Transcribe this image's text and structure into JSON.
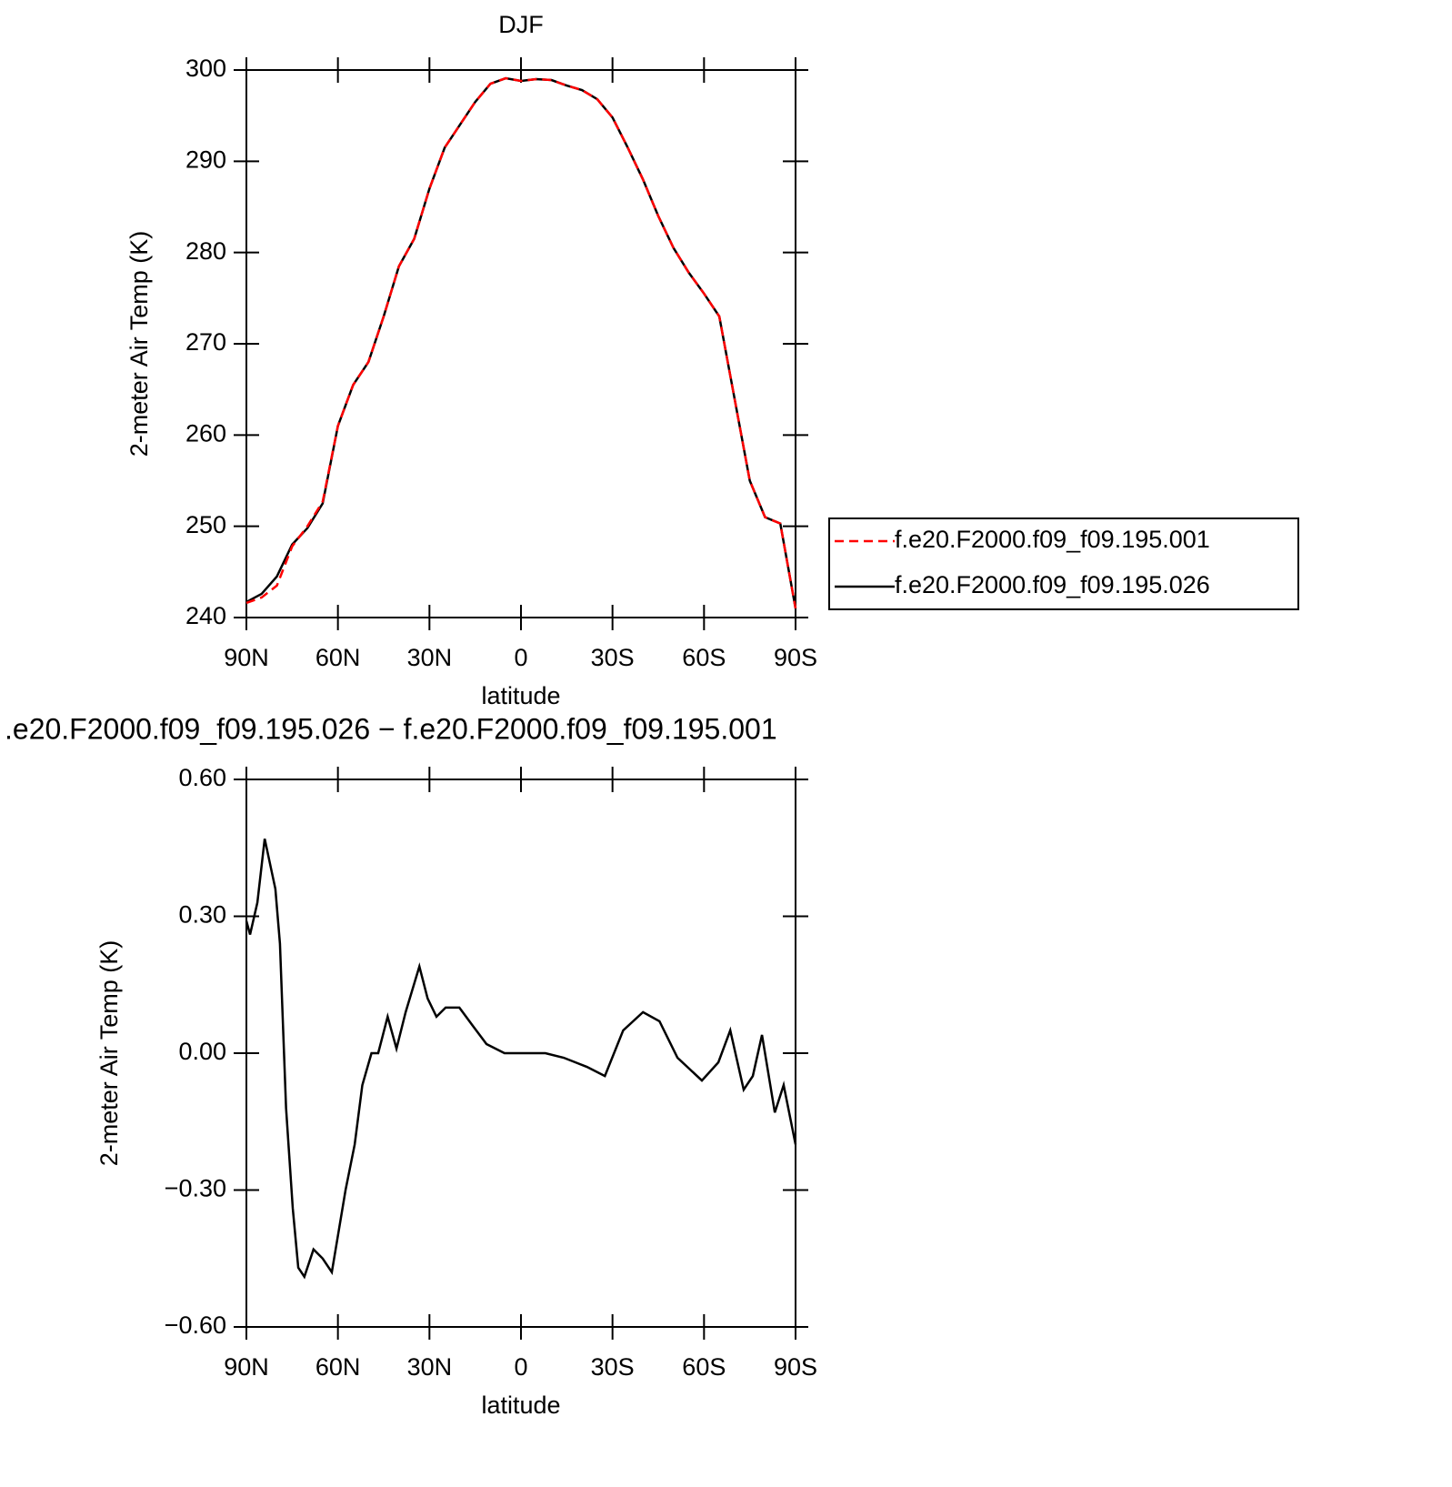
{
  "chart_data": [
    {
      "type": "line",
      "title": "DJF",
      "xlabel": "latitude",
      "ylabel": "2-meter Air Temp (K)",
      "xlim": [
        90,
        -90
      ],
      "xticks": [
        {
          "value": 90,
          "label": "90N"
        },
        {
          "value": 60,
          "label": "60N"
        },
        {
          "value": 30,
          "label": "30N"
        },
        0,
        {
          "value": -30,
          "label": "30S"
        },
        {
          "value": -60,
          "label": "60S"
        },
        {
          "value": -90,
          "label": "90S"
        }
      ],
      "ylim": [
        240,
        300
      ],
      "yticks": [
        240,
        250,
        260,
        270,
        280,
        290,
        300
      ],
      "x": [
        90,
        85,
        80,
        75,
        70,
        65,
        60,
        55,
        50,
        45,
        40,
        35,
        30,
        25,
        20,
        15,
        10,
        5,
        0,
        -5,
        -10,
        -15,
        -20,
        -25,
        -30,
        -35,
        -40,
        -45,
        -50,
        -55,
        -60,
        -65,
        -70,
        -75,
        -80,
        -85,
        -90
      ],
      "legend": "right",
      "series": [
        {
          "name": "f.e20.F2000.f09_f09.195.001",
          "color": "#ff0000",
          "dashed": true,
          "values": [
            241.6,
            242.2,
            243.5,
            247.8,
            250,
            252.7,
            261,
            265.5,
            268,
            273,
            278.5,
            281.5,
            287,
            291.5,
            294,
            296.5,
            298.5,
            299.1,
            298.8,
            299,
            298.9,
            298.3,
            297.8,
            296.8,
            294.8,
            291.5,
            288,
            284,
            280.5,
            277.8,
            275.5,
            273,
            264,
            255,
            251,
            250.3,
            241
          ]
        },
        {
          "name": "f.e20.F2000.f09_f09.195.026",
          "color": "#000000",
          "dashed": false,
          "values": [
            241.7,
            242.6,
            244.5,
            248,
            249.8,
            252.5,
            261,
            265.5,
            268,
            273,
            278.5,
            281.5,
            287,
            291.5,
            294,
            296.5,
            298.5,
            299.1,
            298.8,
            299,
            298.9,
            298.3,
            297.8,
            296.8,
            294.8,
            291.5,
            288,
            284,
            280.5,
            277.8,
            275.5,
            273,
            264,
            255,
            251,
            250.3,
            241
          ]
        }
      ]
    },
    {
      "type": "line",
      "title": ".e20.F2000.f09_f09.195.026 − f.e20.F2000.f09_f09.195.001",
      "xlabel": "latitude",
      "ylabel": "2-meter Air Temp (K)",
      "xlim": [
        90,
        -90
      ],
      "xticks": [
        {
          "value": 90,
          "label": "90N"
        },
        {
          "value": 60,
          "label": "60N"
        },
        {
          "value": 30,
          "label": "30N"
        },
        0,
        {
          "value": -30,
          "label": "30S"
        },
        {
          "value": -60,
          "label": "60S"
        },
        {
          "value": -90,
          "label": "90S"
        }
      ],
      "ylim": [
        -0.6,
        0.6
      ],
      "yticks": [
        {
          "value": -0.6,
          "label": "−0.60"
        },
        {
          "value": -0.3,
          "label": "−0.30"
        },
        {
          "value": 0,
          "label": "0.00"
        },
        {
          "value": 0.3,
          "label": "0.30"
        },
        {
          "value": 0.6,
          "label": "0.60"
        }
      ],
      "x": [
        90,
        88.8,
        86.4,
        84,
        80.5,
        79,
        77,
        74.8,
        73,
        71,
        68,
        65,
        62,
        60,
        57.5,
        54.5,
        52,
        49,
        46.8,
        43.7,
        40.8,
        37.8,
        33.3,
        30.6,
        27.7,
        24.7,
        20.2,
        15.8,
        11.3,
        5.4,
        0,
        -8,
        -14,
        -21.6,
        -27.5,
        -33.5,
        -40,
        -45.4,
        -51.3,
        -59.3,
        -64.7,
        -68.6,
        -73,
        -76,
        -79,
        -83.2,
        -86.1,
        -90
      ],
      "series": [
        {
          "color": "#000000",
          "dashed": false,
          "values": [
            0.29,
            0.26,
            0.33,
            0.47,
            0.36,
            0.24,
            -0.12,
            -0.34,
            -0.47,
            -0.49,
            -0.43,
            -0.45,
            -0.48,
            -0.4,
            -0.3,
            -0.2,
            -0.07,
            0,
            0,
            0.08,
            0.01,
            0.09,
            0.19,
            0.12,
            0.08,
            0.1,
            0.1,
            0.06,
            0.02,
            0,
            0,
            0,
            -0.01,
            -0.03,
            -0.05,
            0.05,
            0.09,
            0.07,
            -0.01,
            -0.06,
            -0.02,
            0.05,
            -0.08,
            -0.05,
            0.04,
            -0.13,
            -0.07,
            -0.2
          ]
        }
      ]
    }
  ]
}
